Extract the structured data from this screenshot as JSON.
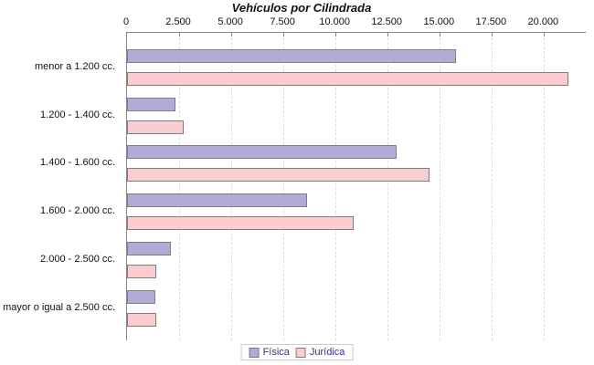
{
  "chart_data": {
    "type": "bar",
    "orientation": "horizontal",
    "title": "Vehículos por Cilindrada",
    "categories": [
      "menor a 1.200 cc.",
      "1.200 - 1.400 cc.",
      "1.400 - 1.600 cc.",
      "1.600 - 2.000 cc.",
      "2.000 - 2.500 cc.",
      "mayor o igual a 2.500 cc."
    ],
    "series": [
      {
        "name": "Física",
        "color": "#b4aad7",
        "border_color": "#7e7e7e",
        "values": [
          15700,
          2250,
          12850,
          8550,
          2000,
          1250
        ]
      },
      {
        "name": "Jurídica",
        "color": "#fccdd0",
        "border_color": "#7e7e7e",
        "values": [
          21100,
          2650,
          14400,
          10800,
          1300,
          1300
        ]
      }
    ],
    "x_tick_labels": [
      "0",
      "2.500",
      "5.000",
      "7.500",
      "10.000",
      "12.500",
      "15.000",
      "17.500",
      "20.000"
    ],
    "x_tick_values": [
      0,
      2500,
      5000,
      7500,
      10000,
      12500,
      15000,
      17500,
      20000
    ],
    "xlim": [
      0,
      22000
    ],
    "grid": "vertical-dashed",
    "legend_position": "bottom",
    "colors": {
      "axis_line": "#858585",
      "gridline": "#dcdcdc",
      "legend_text": "#3b2f88",
      "legend_border": "#cccccc",
      "title_text": "#111111"
    }
  }
}
